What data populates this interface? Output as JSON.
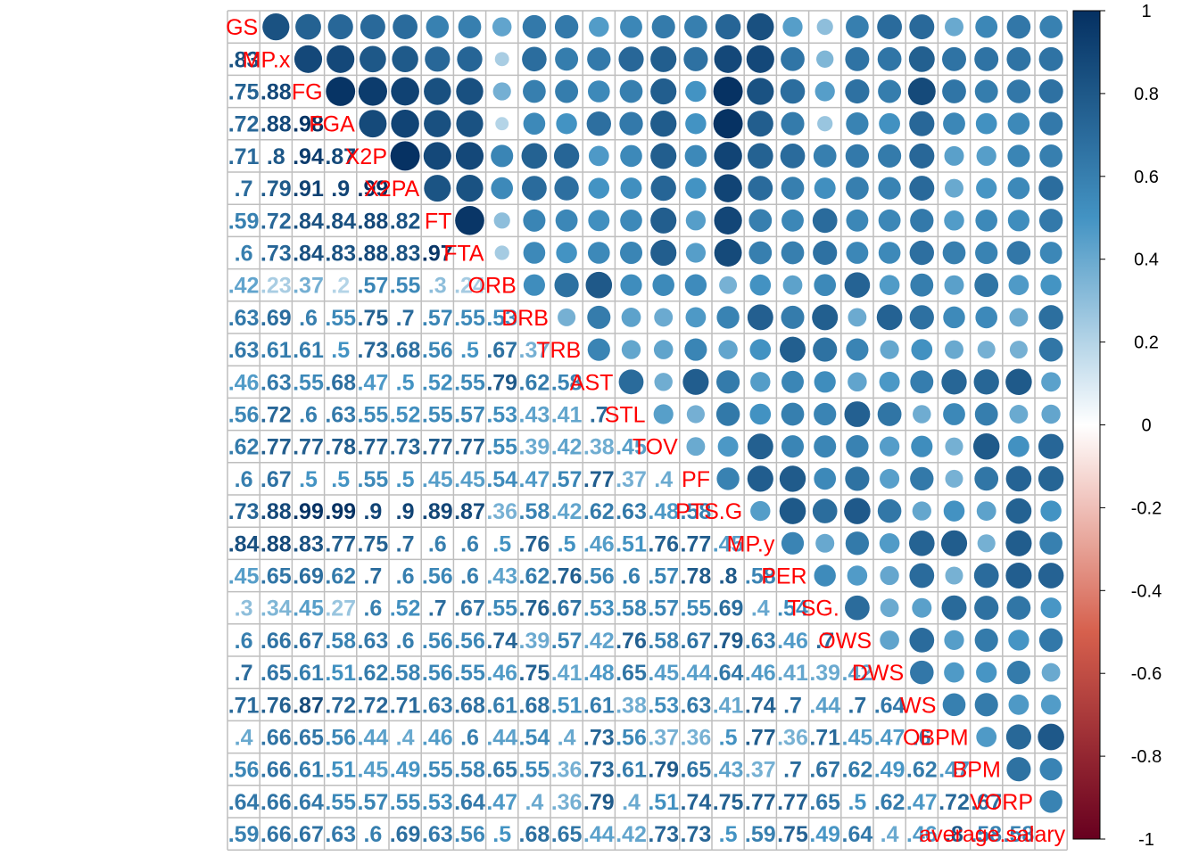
{
  "chart_data": {
    "type": "heatmap",
    "style": "correlation-matrix (upper: circles, lower: numbers)",
    "variables": [
      "GS",
      "MP.x",
      "FG",
      "FGA",
      "X2P",
      "X2PA",
      "FT",
      "FTA",
      "ORB",
      "DRB",
      "TRB",
      "AST",
      "STL",
      "TOV",
      "PF",
      "PTS.G",
      "MP.y",
      "PER",
      "TSG.",
      "OWS",
      "DWS",
      "WS",
      "OBPM",
      "BPM",
      "VORP",
      "average.salary"
    ],
    "matrix": [
      [
        1,
        0.83,
        0.75,
        0.72,
        0.71,
        0.7,
        0.59,
        0.6,
        0.42,
        0.63,
        0.63,
        0.46,
        0.56,
        0.62,
        0.6,
        0.73,
        0.84,
        0.45,
        0.3,
        0.6,
        0.7,
        0.71,
        0.4,
        0.56,
        0.64,
        0.59
      ],
      [
        0.83,
        1,
        0.88,
        0.88,
        0.8,
        0.79,
        0.72,
        0.73,
        0.23,
        0.69,
        0.61,
        0.63,
        0.72,
        0.77,
        0.67,
        0.88,
        0.88,
        0.65,
        0.34,
        0.66,
        0.65,
        0.76,
        0.66,
        0.66,
        0.66,
        0.66
      ],
      [
        0.75,
        0.88,
        1,
        0.98,
        0.94,
        0.91,
        0.84,
        0.84,
        0.37,
        0.6,
        0.61,
        0.55,
        0.6,
        0.77,
        0.5,
        0.99,
        0.83,
        0.69,
        0.45,
        0.67,
        0.61,
        0.87,
        0.65,
        0.61,
        0.64,
        0.67
      ],
      [
        0.72,
        0.88,
        0.98,
        1,
        0.87,
        0.9,
        0.84,
        0.83,
        0.2,
        0.55,
        0.5,
        0.68,
        0.63,
        0.78,
        0.5,
        0.99,
        0.77,
        0.62,
        0.27,
        0.58,
        0.51,
        0.72,
        0.56,
        0.51,
        0.55,
        0.63
      ],
      [
        0.71,
        0.8,
        0.94,
        0.87,
        1,
        0.99,
        0.88,
        0.88,
        0.57,
        0.75,
        0.73,
        0.47,
        0.55,
        0.77,
        0.55,
        0.9,
        0.75,
        0.7,
        0.6,
        0.63,
        0.62,
        0.72,
        0.44,
        0.45,
        0.57,
        0.6
      ],
      [
        0.7,
        0.79,
        0.91,
        0.9,
        0.99,
        1,
        0.82,
        0.83,
        0.55,
        0.7,
        0.68,
        0.5,
        0.52,
        0.73,
        0.5,
        0.9,
        0.7,
        0.6,
        0.52,
        0.6,
        0.58,
        0.71,
        0.4,
        0.49,
        0.55,
        0.69
      ],
      [
        0.59,
        0.72,
        0.84,
        0.84,
        0.88,
        0.82,
        1,
        0.97,
        0.3,
        0.57,
        0.56,
        0.52,
        0.55,
        0.77,
        0.45,
        0.89,
        0.6,
        0.56,
        0.7,
        0.56,
        0.56,
        0.63,
        0.46,
        0.55,
        0.53,
        0.63
      ],
      [
        0.6,
        0.73,
        0.84,
        0.83,
        0.88,
        0.83,
        0.97,
        1,
        0.24,
        0.55,
        0.5,
        0.55,
        0.57,
        0.77,
        0.45,
        0.87,
        0.6,
        0.6,
        0.67,
        0.56,
        0.55,
        0.68,
        0.6,
        0.58,
        0.64,
        0.56
      ]
    ],
    "tick_labels": [
      "1",
      "0.8",
      "0.6",
      "0.4",
      "0.2",
      "0",
      "-0.2",
      "-0.4",
      "-0.6",
      "-0.8",
      "-1"
    ],
    "colorbar": {
      "min": -1,
      "max": 1
    },
    "colors": {
      "neg": "#67001f",
      "negmid": "#d6604d",
      "white": "#ffffff",
      "posmid": "#4393c3",
      "pos": "#053061",
      "label": "#ff0000",
      "grid": "#bebebe"
    }
  }
}
